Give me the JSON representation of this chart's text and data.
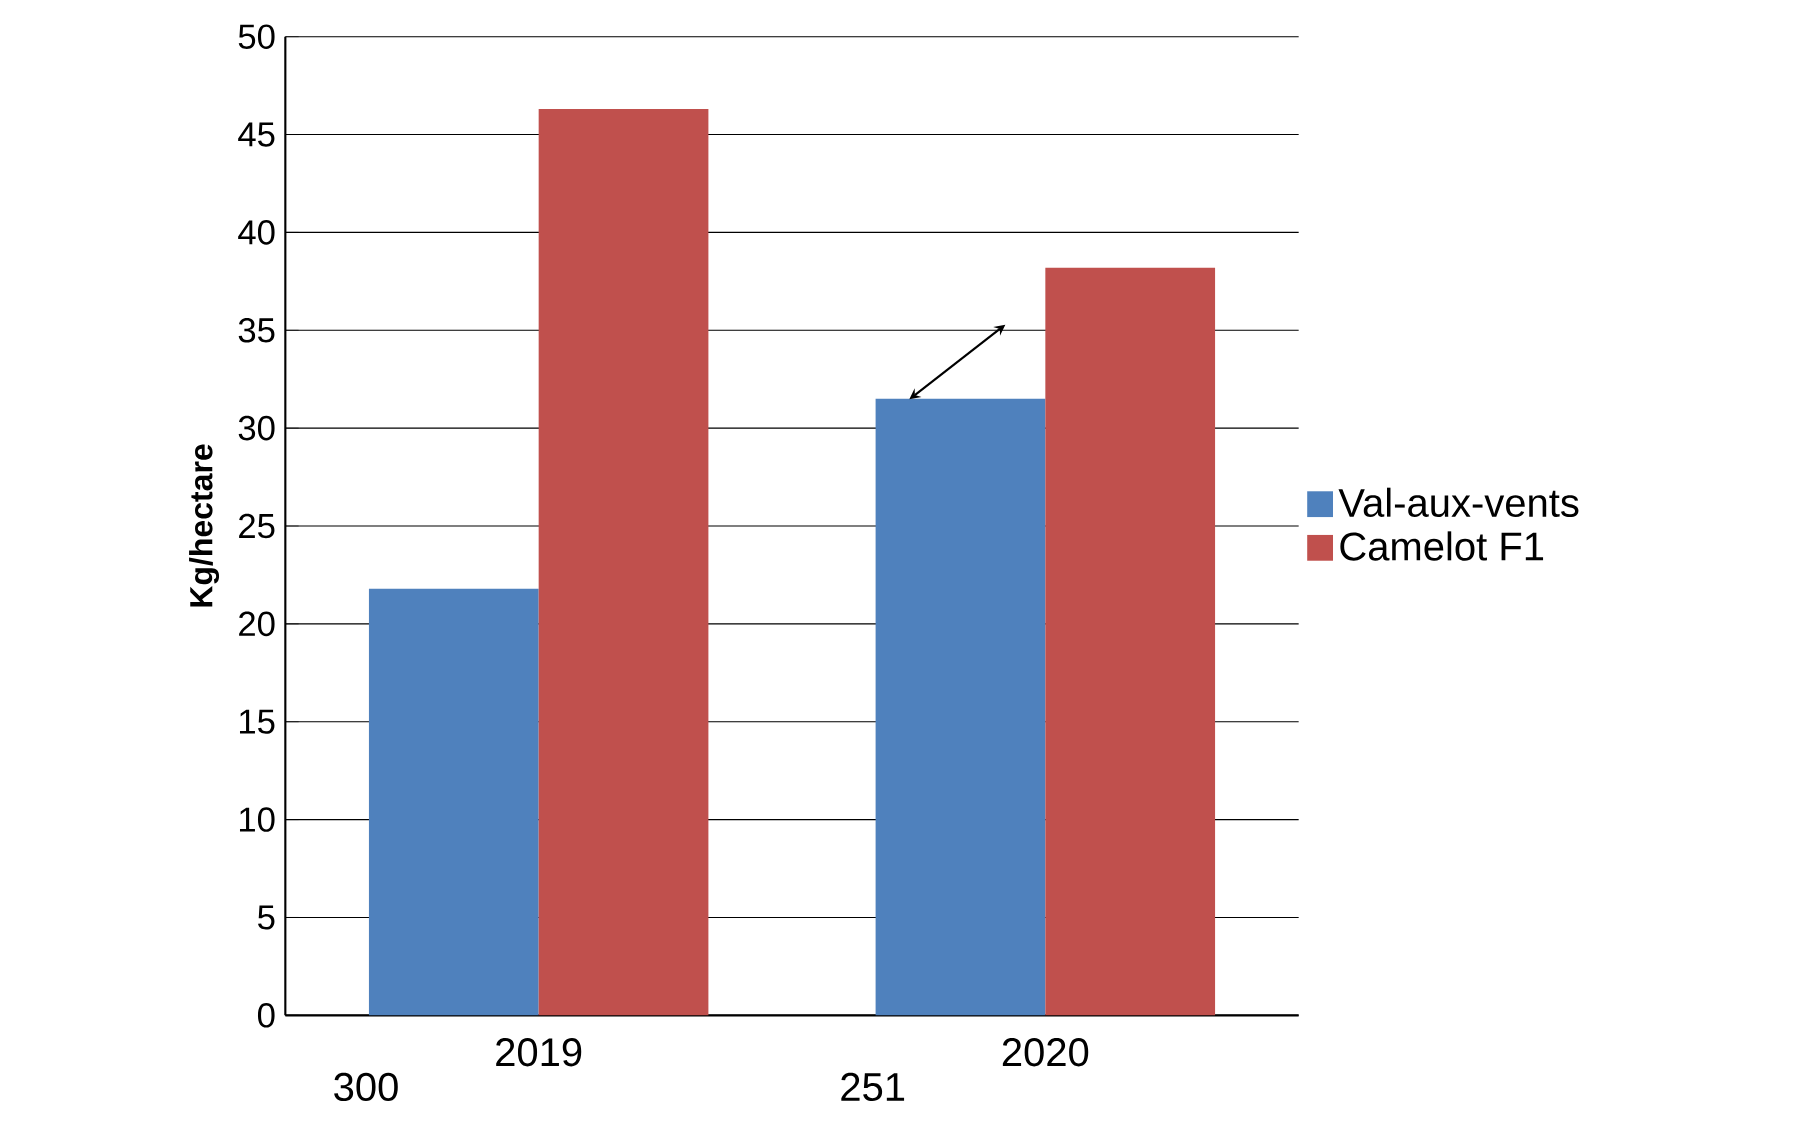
{
  "chart_data": {
    "type": "bar",
    "ylabel": "Kg/hectare",
    "categories": [
      "2019",
      "2020"
    ],
    "series": [
      {
        "name": "Val-aux-vents",
        "color": "#4f81bd",
        "values": [
          21.8,
          31.5
        ]
      },
      {
        "name": "Camelot F1",
        "color": "#c0504d",
        "values": [
          46.3,
          38.2
        ]
      }
    ],
    "ylim": [
      0,
      50
    ],
    "yticks": [
      0,
      5,
      10,
      15,
      20,
      25,
      30,
      35,
      40,
      45,
      50
    ],
    "grid": "y",
    "legend": "right",
    "annotations": [
      "300",
      "251"
    ]
  }
}
